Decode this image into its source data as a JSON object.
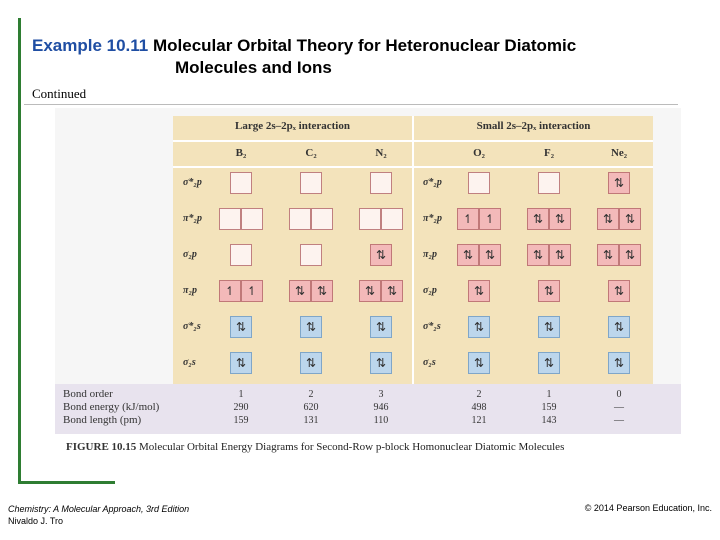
{
  "slide": {
    "example_label": "Example 10.11",
    "title_line1": "Molecular Orbital Theory for Heteronuclear Diatomic",
    "title_line2": "Molecules and Ions",
    "continued": "Continued"
  },
  "figure": {
    "group_large": "Large 2s–2pₓ interaction",
    "group_small": "Small 2s–2pₓ interaction",
    "molecules": [
      "B₂",
      "C₂",
      "N₂",
      "O₂",
      "F₂",
      "Ne₂"
    ],
    "labels_large": [
      "σ*₂p",
      "π*₂p",
      "σ₂p",
      "π₂p",
      "σ*₂s",
      "σ₂s"
    ],
    "labels_small": [
      "σ*₂p",
      "π*₂p",
      "π₂p",
      "σ₂p",
      "σ*₂s",
      "σ₂s"
    ],
    "diagram": [
      [
        [
          ""
        ],
        [
          "",
          ""
        ],
        [
          ""
        ],
        [
          "↿",
          "↿"
        ],
        [
          "⇅"
        ],
        [
          "⇅"
        ]
      ],
      [
        [
          ""
        ],
        [
          "",
          ""
        ],
        [
          ""
        ],
        [
          "⇅",
          "⇅"
        ],
        [
          "⇅"
        ],
        [
          "⇅"
        ]
      ],
      [
        [
          ""
        ],
        [
          "",
          ""
        ],
        [
          "⇅"
        ],
        [
          "⇅",
          "⇅"
        ],
        [
          "⇅"
        ],
        [
          "⇅"
        ]
      ],
      [
        [
          ""
        ],
        [
          "↿",
          "↿"
        ],
        [
          "⇅",
          "⇅"
        ],
        [
          "⇅"
        ],
        [
          "⇅"
        ],
        [
          "⇅"
        ]
      ],
      [
        [
          ""
        ],
        [
          "⇅",
          "⇅"
        ],
        [
          "⇅",
          "⇅"
        ],
        [
          "⇅"
        ],
        [
          "⇅"
        ],
        [
          "⇅"
        ]
      ],
      [
        [
          "⇅"
        ],
        [
          "⇅",
          "⇅"
        ],
        [
          "⇅",
          "⇅"
        ],
        [
          "⇅"
        ],
        [
          "⇅"
        ],
        [
          "⇅"
        ]
      ]
    ],
    "bond_props": {
      "labels": [
        "Bond order",
        "Bond energy (kJ/mol)",
        "Bond length (pm)"
      ],
      "bond_order": [
        "1",
        "2",
        "3",
        "2",
        "1",
        "0"
      ],
      "bond_energy": [
        "290",
        "620",
        "946",
        "498",
        "159",
        "—"
      ],
      "bond_length": [
        "159",
        "131",
        "110",
        "121",
        "143",
        "—"
      ]
    },
    "caption_label": "FIGURE 10.15",
    "caption_text": "Molecular Orbital Energy Diagrams for Second-Row p-block Homonuclear Diatomic Molecules"
  },
  "footer": {
    "book": "Chemistry: A Molecular Approach, 3rd Edition",
    "author": "Nivaldo J. Tro",
    "copyright": "© 2014 Pearson Education, Inc."
  },
  "colors": {
    "accent": "#1f4ea3",
    "frame": "#2e7d32"
  }
}
